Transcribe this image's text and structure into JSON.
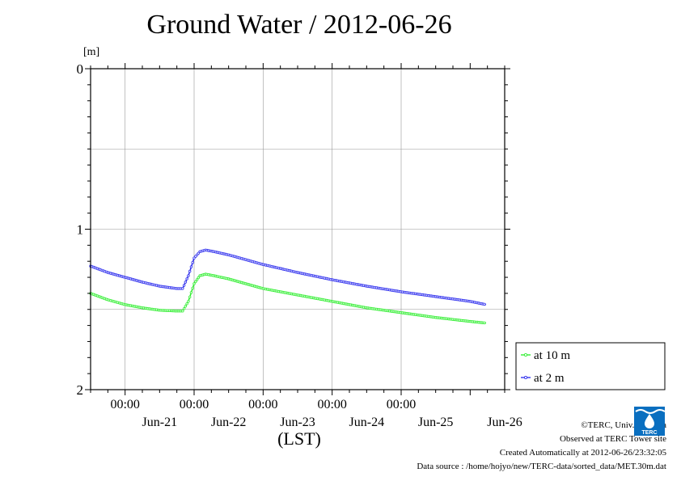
{
  "title": "Ground Water / 2012-06-26",
  "unit_label": "[m]",
  "x_axis_label": "(LST)",
  "credits": {
    "copyright": "©TERC, Univ. Tsukuba",
    "site": "Observed at TERC Tower site",
    "created": "Created Automatically at 2012-06-26/23:32:05",
    "source": "Data source : /home/hojyo/new/TERC-data/sorted_data/MET.30m.dat"
  },
  "logo_text": "TERC",
  "colors": {
    "at_10m": "#33ee33",
    "at_2m": "#3333ee",
    "grid": "#999999"
  },
  "chart_data": {
    "type": "line",
    "title": "Ground Water / 2012-06-26",
    "ylabel": "[m]",
    "xlabel": "(LST)",
    "y_inverted": true,
    "ylim": [
      0,
      2
    ],
    "y_ticks": [
      0,
      1,
      2
    ],
    "y_tick_labels": [
      "0",
      "1",
      "2"
    ],
    "xlim": [
      "2012-06-20T12:00",
      "2012-06-26T12:00"
    ],
    "x_ticks": [
      "2012-06-21T00:00",
      "2012-06-22T00:00",
      "2012-06-23T00:00",
      "2012-06-24T00:00",
      "2012-06-25T00:00"
    ],
    "x_tick_time_label": "00:00",
    "date_labels": [
      {
        "label": "Jun-21",
        "at": "2012-06-21T12:00"
      },
      {
        "label": "Jun-22",
        "at": "2012-06-22T12:00"
      },
      {
        "label": "Jun-23",
        "at": "2012-06-23T12:00"
      },
      {
        "label": "Jun-24",
        "at": "2012-06-24T12:00"
      },
      {
        "label": "Jun-25",
        "at": "2012-06-25T12:00"
      },
      {
        "label": "Jun-26",
        "at": "2012-06-26T12:00"
      }
    ],
    "grid": true,
    "legend_position": "right",
    "series": [
      {
        "name": "at 10 m",
        "color": "#33ee33",
        "points": [
          [
            "2012-06-20T12:00",
            1.4
          ],
          [
            "2012-06-20T18:00",
            1.44
          ],
          [
            "2012-06-21T00:00",
            1.47
          ],
          [
            "2012-06-21T06:00",
            1.49
          ],
          [
            "2012-06-21T12:00",
            1.505
          ],
          [
            "2012-06-21T18:00",
            1.51
          ],
          [
            "2012-06-21T20:00",
            1.51
          ],
          [
            "2012-06-21T22:00",
            1.45
          ],
          [
            "2012-06-22T00:00",
            1.34
          ],
          [
            "2012-06-22T02:00",
            1.29
          ],
          [
            "2012-06-22T04:00",
            1.28
          ],
          [
            "2012-06-22T07:00",
            1.29
          ],
          [
            "2012-06-22T12:00",
            1.31
          ],
          [
            "2012-06-23T00:00",
            1.37
          ],
          [
            "2012-06-23T12:00",
            1.41
          ],
          [
            "2012-06-24T00:00",
            1.45
          ],
          [
            "2012-06-24T12:00",
            1.49
          ],
          [
            "2012-06-25T00:00",
            1.52
          ],
          [
            "2012-06-25T12:00",
            1.55
          ],
          [
            "2012-06-26T00:00",
            1.575
          ],
          [
            "2012-06-26T05:30",
            1.585
          ]
        ]
      },
      {
        "name": "at 2 m",
        "color": "#3333ee",
        "points": [
          [
            "2012-06-20T12:00",
            1.23
          ],
          [
            "2012-06-20T18:00",
            1.27
          ],
          [
            "2012-06-21T00:00",
            1.3
          ],
          [
            "2012-06-21T06:00",
            1.33
          ],
          [
            "2012-06-21T12:00",
            1.355
          ],
          [
            "2012-06-21T18:00",
            1.37
          ],
          [
            "2012-06-21T20:00",
            1.37
          ],
          [
            "2012-06-21T22:00",
            1.29
          ],
          [
            "2012-06-22T00:00",
            1.18
          ],
          [
            "2012-06-22T02:00",
            1.14
          ],
          [
            "2012-06-22T04:00",
            1.13
          ],
          [
            "2012-06-22T07:00",
            1.14
          ],
          [
            "2012-06-22T12:00",
            1.16
          ],
          [
            "2012-06-23T00:00",
            1.22
          ],
          [
            "2012-06-23T12:00",
            1.27
          ],
          [
            "2012-06-24T00:00",
            1.315
          ],
          [
            "2012-06-24T12:00",
            1.355
          ],
          [
            "2012-06-25T00:00",
            1.39
          ],
          [
            "2012-06-25T12:00",
            1.42
          ],
          [
            "2012-06-26T00:00",
            1.45
          ],
          [
            "2012-06-26T05:30",
            1.47
          ]
        ]
      }
    ]
  }
}
